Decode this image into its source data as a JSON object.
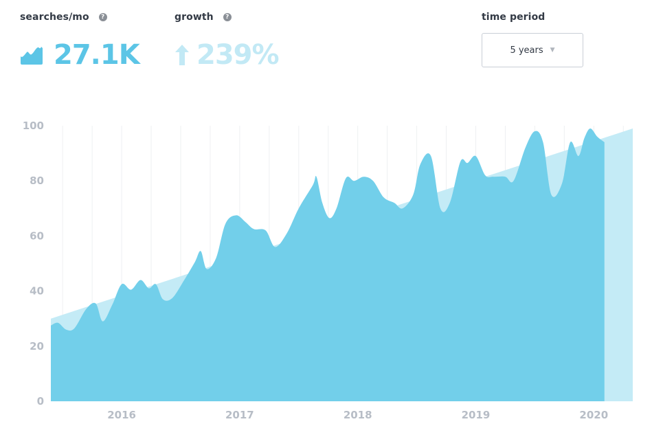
{
  "stats": {
    "searches_label": "searches/mo",
    "searches_value": "27.1K",
    "growth_label": "growth",
    "growth_value": "239%",
    "help_glyph": "?",
    "searches_icon": "wave-icon",
    "growth_icon": "arrow-up-icon"
  },
  "time_period": {
    "label": "time period",
    "selected": "5 years",
    "caret": "▼"
  },
  "colors": {
    "area": "#72cfea",
    "trend": "#c4ebf6",
    "value_text": "#5cc5e6",
    "growth_text": "#c2e9f5",
    "grid": "#eef0f2",
    "tick_text": "#b7bdc6"
  },
  "chart_data": {
    "type": "area",
    "xlim": [
      2015.4,
      2020.33
    ],
    "ylim": [
      0,
      100
    ],
    "yticks": [
      0,
      20,
      40,
      60,
      80,
      100
    ],
    "xticks": [
      {
        "value": 2016,
        "label": "2016"
      },
      {
        "value": 2017,
        "label": "2017"
      },
      {
        "value": 2018,
        "label": "2018"
      },
      {
        "value": 2019,
        "label": "2019"
      },
      {
        "value": 2020,
        "label": "2020"
      }
    ],
    "trend": [
      [
        2015.4,
        30
      ],
      [
        2020.33,
        99
      ]
    ],
    "series": [
      {
        "values": [
          [
            2015.4,
            27.5
          ],
          [
            2015.46,
            28.5
          ],
          [
            2015.53,
            26.0
          ],
          [
            2015.6,
            26.5
          ],
          [
            2015.7,
            33.5
          ],
          [
            2015.78,
            35.5
          ],
          [
            2015.84,
            29.0
          ],
          [
            2015.92,
            35.0
          ],
          [
            2016.0,
            42.5
          ],
          [
            2016.08,
            40.5
          ],
          [
            2016.16,
            44.0
          ],
          [
            2016.23,
            41.0
          ],
          [
            2016.29,
            42.5
          ],
          [
            2016.35,
            37.0
          ],
          [
            2016.43,
            37.5
          ],
          [
            2016.53,
            44.0
          ],
          [
            2016.62,
            50.5
          ],
          [
            2016.67,
            54.5
          ],
          [
            2016.72,
            48.0
          ],
          [
            2016.8,
            52.0
          ],
          [
            2016.88,
            64.5
          ],
          [
            2016.97,
            67.5
          ],
          [
            2017.05,
            65.0
          ],
          [
            2017.12,
            62.5
          ],
          [
            2017.22,
            62.0
          ],
          [
            2017.3,
            56.0
          ],
          [
            2017.4,
            61.0
          ],
          [
            2017.5,
            70.0
          ],
          [
            2017.62,
            78.5
          ],
          [
            2017.65,
            81.5
          ],
          [
            2017.7,
            72.0
          ],
          [
            2017.76,
            66.5
          ],
          [
            2017.82,
            70.0
          ],
          [
            2017.9,
            81.0
          ],
          [
            2017.97,
            80.0
          ],
          [
            2018.05,
            81.5
          ],
          [
            2018.13,
            80.0
          ],
          [
            2018.22,
            74.0
          ],
          [
            2018.31,
            72.0
          ],
          [
            2018.38,
            70.0
          ],
          [
            2018.47,
            75.0
          ],
          [
            2018.53,
            86.0
          ],
          [
            2018.62,
            89.0
          ],
          [
            2018.7,
            70.0
          ],
          [
            2018.78,
            72.0
          ],
          [
            2018.87,
            87.0
          ],
          [
            2018.93,
            86.5
          ],
          [
            2019.0,
            89.0
          ],
          [
            2019.08,
            82.0
          ],
          [
            2019.15,
            81.5
          ],
          [
            2019.25,
            81.5
          ],
          [
            2019.32,
            80.0
          ],
          [
            2019.42,
            92.0
          ],
          [
            2019.5,
            98.0
          ],
          [
            2019.57,
            94.0
          ],
          [
            2019.64,
            75.0
          ],
          [
            2019.73,
            79.0
          ],
          [
            2019.8,
            94.0
          ],
          [
            2019.87,
            89.0
          ],
          [
            2019.92,
            95.5
          ],
          [
            2019.97,
            99.0
          ],
          [
            2020.03,
            96.0
          ],
          [
            2020.09,
            94.0
          ]
        ]
      }
    ]
  }
}
